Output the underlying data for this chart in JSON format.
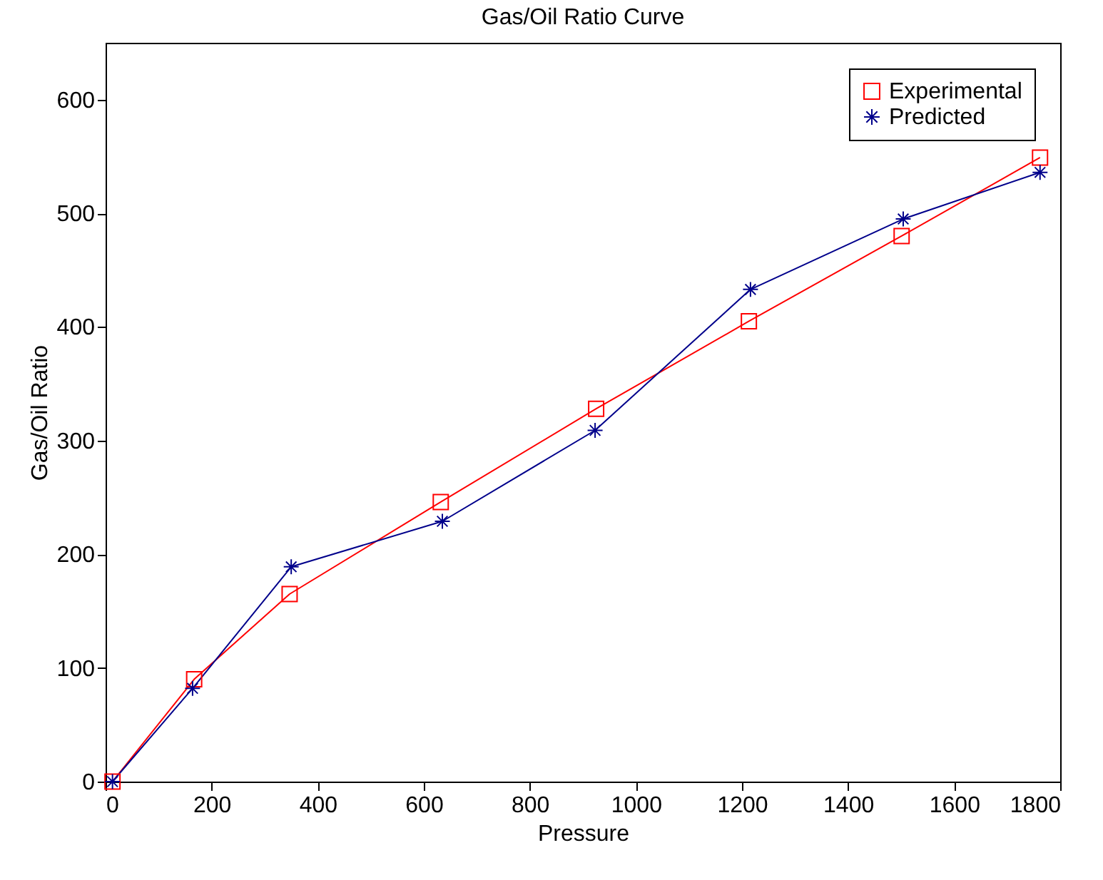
{
  "chart_data": {
    "type": "line",
    "title": "Gas/Oil Ratio Curve",
    "xlabel": "Pressure",
    "ylabel": "Gas/Oil Ratio",
    "xlim": [
      0,
      1800
    ],
    "xticks": [
      0,
      200,
      400,
      600,
      800,
      1000,
      1200,
      1400,
      1600,
      1800
    ],
    "ylim": [
      0,
      650
    ],
    "yticks": [
      0,
      100,
      200,
      300,
      400,
      500,
      600
    ],
    "legend": "top right",
    "grid": false,
    "series": [
      {
        "name": "Experimental",
        "color": "#ff0000",
        "marker": "square",
        "x": [
          13,
          167,
          347,
          632,
          925,
          1213,
          1501,
          1762
        ],
        "values": [
          0,
          90,
          165,
          246,
          328,
          405,
          480,
          549
        ]
      },
      {
        "name": "Predicted",
        "color": "#00008b",
        "marker": "cross",
        "x": [
          13,
          164,
          350,
          635,
          923,
          1216,
          1504,
          1762
        ],
        "values": [
          0,
          82,
          189,
          229,
          309,
          433,
          495,
          536
        ]
      }
    ]
  }
}
